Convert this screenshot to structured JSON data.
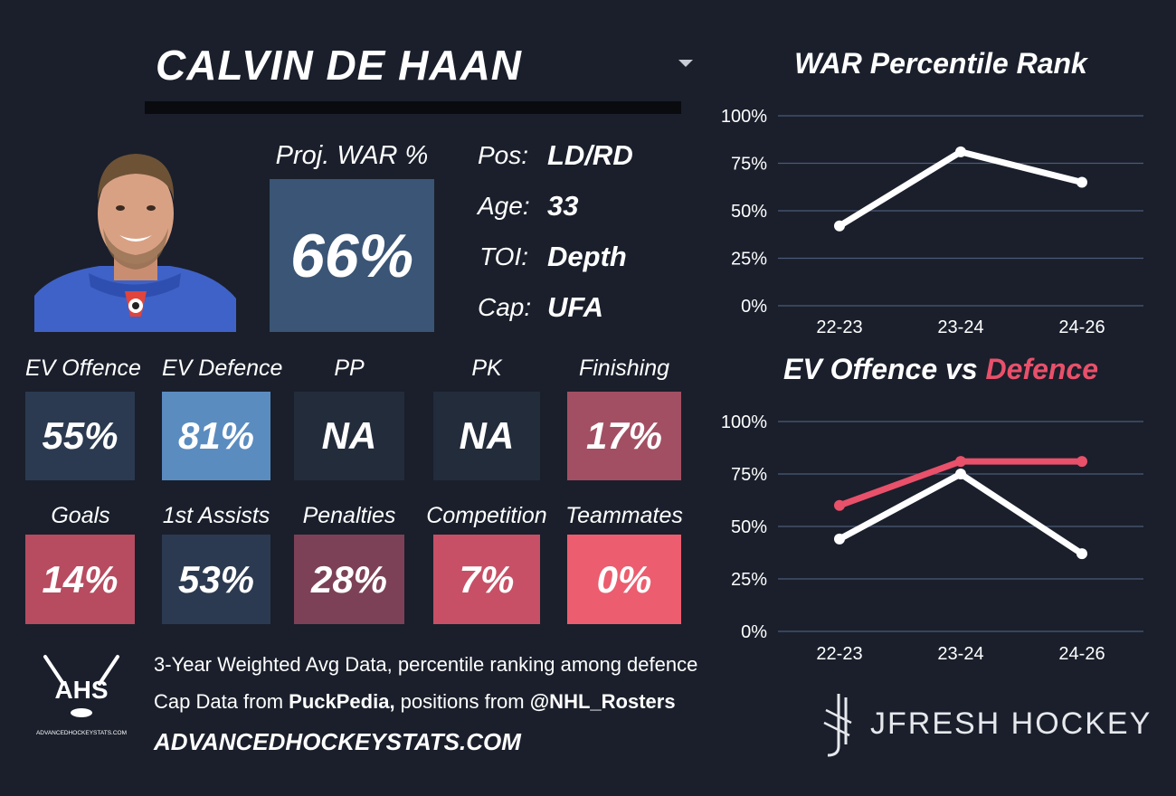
{
  "player": {
    "name": "CALVIN DE HAAN",
    "proj_war_label": "Proj. WAR %",
    "proj_war_value": "66%",
    "info": [
      {
        "key": "Pos:",
        "value": "LD/RD"
      },
      {
        "key": "Age:",
        "value": "33"
      },
      {
        "key": "TOI:",
        "value": "Depth"
      },
      {
        "key": "Cap:",
        "value": "UFA"
      }
    ]
  },
  "tiles": [
    {
      "label": "EV Offence",
      "value": "55%",
      "color": "#2b3a50"
    },
    {
      "label": "EV Defence",
      "value": "81%",
      "color": "#5b8cc0"
    },
    {
      "label": "PP",
      "value": "NA",
      "color": "#232c3b"
    },
    {
      "label": "PK",
      "value": "NA",
      "color": "#232c3b"
    },
    {
      "label": "Finishing",
      "value": "17%",
      "color": "#a34f63"
    },
    {
      "label": "Goals",
      "value": "14%",
      "color": "#b74b60"
    },
    {
      "label": "1st Assists",
      "value": "53%",
      "color": "#2b3a50"
    },
    {
      "label": "Penalties",
      "value": "28%",
      "color": "#7c4156"
    },
    {
      "label": "Competition",
      "value": "7%",
      "color": "#c75066"
    },
    {
      "label": "Teammates",
      "value": "0%",
      "color": "#ec5d6f"
    }
  ],
  "colors": {
    "background": "#1a1f2b",
    "proj_war_box": "#3a5575",
    "offence_line": "#ffffff",
    "defence_line": "#e9506a",
    "gridline": "#4a5a78"
  },
  "chart_data": [
    {
      "type": "line",
      "title": "WAR Percentile Rank",
      "categories": [
        "22-23",
        "23-24",
        "24-26"
      ],
      "series": [
        {
          "values": [
            42,
            81,
            65
          ],
          "color": "#ffffff"
        }
      ],
      "ylim": [
        0,
        100
      ],
      "yticks": [
        "100%",
        "75%",
        "50%",
        "25%",
        "0%"
      ],
      "grid": true
    },
    {
      "type": "line",
      "title_parts": {
        "first": "EV Offence vs ",
        "second": "Defence"
      },
      "categories": [
        "22-23",
        "23-24",
        "24-26"
      ],
      "series": [
        {
          "values": [
            60,
            81,
            81
          ],
          "color": "#e9506a"
        },
        {
          "values": [
            44,
            75,
            37
          ],
          "color": "#ffffff"
        }
      ],
      "ylim": [
        0,
        100
      ],
      "yticks": [
        "100%",
        "75%",
        "50%",
        "25%",
        "0%"
      ],
      "grid": true
    }
  ],
  "footer": {
    "line1": "3-Year Weighted Avg Data, percentile ranking among defence",
    "line2_prefix": "Cap Data from ",
    "line2_source1": "PuckPedia,",
    "line2_middle": " positions from ",
    "line2_source2": "@NHL_Rosters",
    "site": "ADVANCEDHOCKEYSTATS.COM",
    "ahs_logo_text": "AHS",
    "ahs_logo_subtext": "ADVANCEDHOCKEYSTATS.COM",
    "brand": "JFRESH HOCKEY"
  }
}
